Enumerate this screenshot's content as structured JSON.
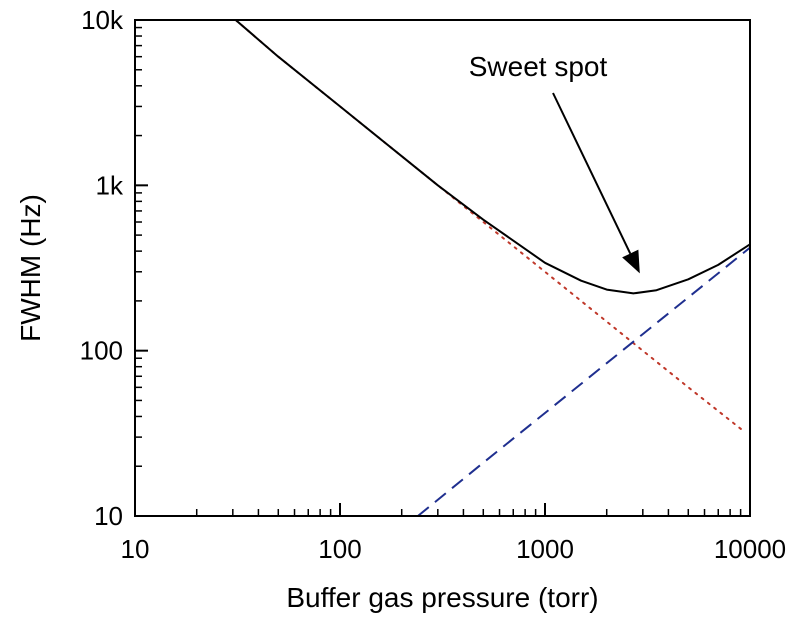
{
  "chart_data": {
    "type": "line",
    "xlabel": "Buffer gas pressure (torr)",
    "ylabel": "FWHM (Hz)",
    "xscale": "log",
    "yscale": "log",
    "xlim": [
      10,
      10000
    ],
    "ylim": [
      10,
      10000
    ],
    "x_ticks": [
      {
        "value": 10,
        "label": "10"
      },
      {
        "value": 100,
        "label": "100"
      },
      {
        "value": 1000,
        "label": "1000"
      },
      {
        "value": 10000,
        "label": "10000"
      }
    ],
    "y_ticks": [
      {
        "value": 10,
        "label": "10"
      },
      {
        "value": 100,
        "label": "100"
      },
      {
        "value": 1000,
        "label": "1k"
      },
      {
        "value": 10000,
        "label": "10k"
      }
    ],
    "grid": false,
    "series": [
      {
        "style": "dotted",
        "color": "#c0392b",
        "x": [
          31,
          50,
          100,
          200,
          300,
          500,
          1000,
          2000,
          3000,
          5000,
          9500
        ],
        "y": [
          10000,
          6000,
          3000,
          1500,
          1000,
          600,
          300,
          150,
          100,
          60,
          32
        ]
      },
      {
        "style": "dashed",
        "color": "#1f2f8f",
        "x": [
          240,
          500,
          1000,
          2000,
          3000,
          5000,
          10000
        ],
        "y": [
          10,
          21,
          42,
          84,
          126,
          210,
          420
        ]
      },
      {
        "style": "solid",
        "color": "#000000",
        "x": [
          31,
          50,
          100,
          200,
          300,
          500,
          1000,
          1500,
          2000,
          2700,
          3500,
          5000,
          7000,
          10000
        ],
        "y": [
          10000,
          6000,
          3000,
          1500,
          1000,
          620,
          340,
          265,
          234,
          222,
          232,
          270,
          330,
          440
        ]
      }
    ],
    "annotations": [
      {
        "text": "Sweet spot",
        "arrow_to": {
          "x": 2900,
          "y": 270
        }
      }
    ]
  }
}
